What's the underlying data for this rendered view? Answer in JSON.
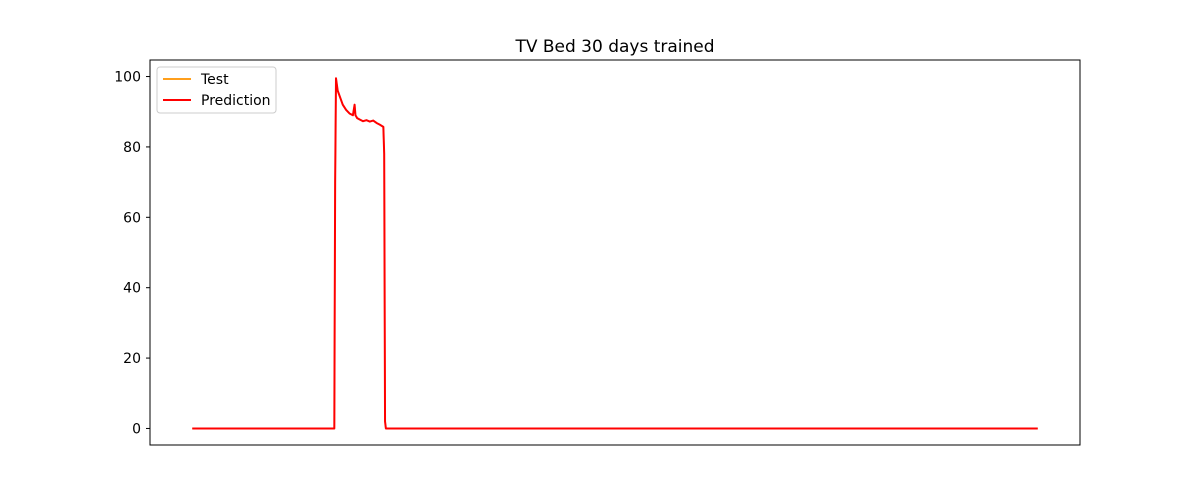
{
  "chart_data": {
    "type": "line",
    "title": "TV Bed 30 days trained",
    "xlabel": "",
    "ylabel": "",
    "ylim": [
      -4.7,
      104.7
    ],
    "xlim": [
      -50,
      1050
    ],
    "yticks": [
      0,
      20,
      40,
      60,
      80,
      100
    ],
    "grid": false,
    "legend_position": "upper-left",
    "series": [
      {
        "name": "Test",
        "color": "#ff9f1c",
        "x": [
          0,
          168,
          169,
          170,
          172,
          175,
          178,
          182,
          186,
          190,
          192,
          193,
          194,
          195,
          198,
          202,
          206,
          210,
          214,
          218,
          222,
          226,
          227,
          228,
          229,
          230,
          1000
        ],
        "y": [
          0,
          0,
          70,
          99.5,
          96,
          94,
          92,
          90.5,
          89.5,
          89,
          92,
          89,
          88.6,
          88.2,
          87.8,
          87.3,
          87.6,
          87.2,
          87.5,
          86.8,
          86.3,
          85.7,
          78,
          2,
          0,
          0,
          0
        ]
      },
      {
        "name": "Prediction",
        "color": "#ff0000",
        "x": [
          0,
          168,
          169,
          170,
          172,
          175,
          178,
          182,
          186,
          190,
          192,
          193,
          194,
          195,
          198,
          202,
          206,
          210,
          214,
          218,
          222,
          226,
          227,
          228,
          229,
          230,
          1000
        ],
        "y": [
          0,
          0,
          70,
          99.5,
          96,
          94,
          92,
          90.5,
          89.5,
          89,
          92,
          89,
          88.6,
          88.2,
          87.8,
          87.3,
          87.6,
          87.2,
          87.5,
          86.8,
          86.3,
          85.7,
          78,
          2,
          0,
          0,
          0
        ]
      }
    ]
  }
}
